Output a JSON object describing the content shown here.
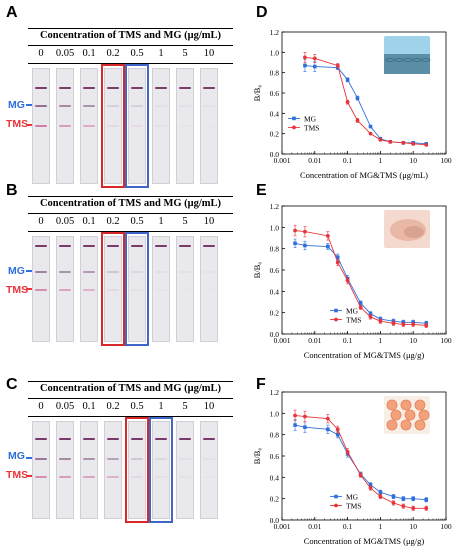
{
  "panel_labels": [
    "A",
    "B",
    "C",
    "D",
    "E",
    "F"
  ],
  "strip_panels": [
    {
      "label": "A",
      "title": "Concentration of TMS and MG (μg/mL)",
      "concentrations": [
        "0",
        "0.05",
        "0.1",
        "0.2",
        "0.5",
        "1",
        "5",
        "10"
      ],
      "line_labels": {
        "mg": "MG",
        "tms": "TMS"
      },
      "red_box_index": 3,
      "blue_box_index": 4
    },
    {
      "label": "B",
      "title": "Concentration of TMS and MG (μg/mL)",
      "concentrations": [
        "0",
        "0.05",
        "0.1",
        "0.2",
        "0.5",
        "1",
        "5",
        "10"
      ],
      "line_labels": {
        "mg": "MG",
        "tms": "TMS"
      },
      "red_box_index": 3,
      "blue_box_index": 4
    },
    {
      "label": "C",
      "title": "Concentration of TMS and MG (μg/mL)",
      "concentrations": [
        "0",
        "0.05",
        "0.1",
        "0.2",
        "0.5",
        "1",
        "5",
        "10"
      ],
      "line_labels": {
        "mg": "MG",
        "tms": "TMS"
      },
      "red_box_index": 4,
      "blue_box_index": 5
    }
  ],
  "colors": {
    "mg": "#2f6fdc",
    "tms": "#e8353a",
    "red_box": "#d62a2a",
    "blue_box": "#3f66c8"
  },
  "chart_data": [
    {
      "type": "line",
      "label": "D",
      "xlabel": "Concentration of MG&TMS (μg/mL)",
      "ylabel": "B/B₀",
      "xscale": "log",
      "xlim": [
        0.001,
        100
      ],
      "ylim": [
        0.0,
        1.2
      ],
      "xticks": [
        "0.001",
        "0.01",
        "0.1",
        "1",
        "10",
        "100"
      ],
      "yticks": [
        "0.0",
        "0.2",
        "0.4",
        "0.6",
        "0.8",
        "1.0",
        "1.2"
      ],
      "legend": "left",
      "photo": "fish farm photo",
      "series": [
        {
          "name": "MG",
          "color": "#2f6fdc",
          "marker": "square",
          "x": [
            0.005,
            0.01,
            0.05,
            0.1,
            0.2,
            0.5,
            1,
            2,
            5,
            10,
            25
          ],
          "y": [
            0.87,
            0.86,
            0.85,
            0.73,
            0.55,
            0.27,
            0.15,
            0.12,
            0.11,
            0.11,
            0.1
          ],
          "err": [
            0.06,
            0.05,
            0.02,
            0.02,
            0.02,
            0.01,
            0.01,
            0.01,
            0.01,
            0.01,
            0.01
          ]
        },
        {
          "name": "TMS",
          "color": "#e8353a",
          "marker": "circle",
          "x": [
            0.005,
            0.01,
            0.05,
            0.1,
            0.2,
            0.5,
            1,
            2,
            5,
            10,
            25
          ],
          "y": [
            0.95,
            0.94,
            0.87,
            0.51,
            0.33,
            0.2,
            0.14,
            0.12,
            0.11,
            0.1,
            0.09
          ],
          "err": [
            0.05,
            0.04,
            0.02,
            0.02,
            0.02,
            0.01,
            0.01,
            0.01,
            0.01,
            0.01,
            0.01
          ]
        }
      ]
    },
    {
      "type": "line",
      "label": "E",
      "xlabel": "Concentration of MG&TMS (μg/g)",
      "ylabel": "B/B₀",
      "xscale": "log",
      "xlim": [
        0.001,
        100
      ],
      "ylim": [
        0.0,
        1.2
      ],
      "xticks": [
        "0.001",
        "0.01",
        "0.1",
        "1",
        "10",
        "100"
      ],
      "yticks": [
        "0.0",
        "0.2",
        "0.4",
        "0.6",
        "0.8",
        "1.0",
        "1.2"
      ],
      "legend": "center",
      "photo": "fish fillet photo",
      "series": [
        {
          "name": "MG",
          "color": "#2f6fdc",
          "marker": "square",
          "x": [
            0.0025,
            0.005,
            0.025,
            0.05,
            0.1,
            0.25,
            0.5,
            1,
            2.5,
            5,
            10,
            25
          ],
          "y": [
            0.85,
            0.83,
            0.82,
            0.72,
            0.52,
            0.29,
            0.19,
            0.14,
            0.12,
            0.11,
            0.11,
            0.1
          ],
          "err": [
            0.04,
            0.04,
            0.03,
            0.03,
            0.03,
            0.02,
            0.02,
            0.02,
            0.02,
            0.02,
            0.02,
            0.02
          ]
        },
        {
          "name": "TMS",
          "color": "#e8353a",
          "marker": "circle",
          "x": [
            0.0025,
            0.005,
            0.025,
            0.05,
            0.1,
            0.25,
            0.5,
            1,
            2.5,
            5,
            10,
            25
          ],
          "y": [
            0.97,
            0.96,
            0.92,
            0.67,
            0.5,
            0.25,
            0.16,
            0.12,
            0.1,
            0.09,
            0.09,
            0.08
          ],
          "err": [
            0.05,
            0.05,
            0.04,
            0.03,
            0.03,
            0.02,
            0.02,
            0.02,
            0.02,
            0.02,
            0.02,
            0.02
          ]
        }
      ]
    },
    {
      "type": "line",
      "label": "F",
      "xlabel": "Concentration of MG&TMS (μg/g)",
      "ylabel": "B/B₀",
      "xscale": "log",
      "xlim": [
        0.001,
        100
      ],
      "ylim": [
        0.0,
        1.2
      ],
      "xticks": [
        "0.001",
        "0.01",
        "0.1",
        "1",
        "10",
        "100"
      ],
      "yticks": [
        "0.0",
        "0.2",
        "0.4",
        "0.6",
        "0.8",
        "1.0",
        "1.2"
      ],
      "legend": "center",
      "photo": "shrimp photo",
      "series": [
        {
          "name": "MG",
          "color": "#2f6fdc",
          "marker": "square",
          "x": [
            0.0025,
            0.005,
            0.025,
            0.05,
            0.1,
            0.25,
            0.5,
            1,
            2.5,
            5,
            10,
            25
          ],
          "y": [
            0.89,
            0.87,
            0.85,
            0.8,
            0.62,
            0.43,
            0.33,
            0.26,
            0.22,
            0.2,
            0.2,
            0.19
          ],
          "err": [
            0.05,
            0.05,
            0.04,
            0.03,
            0.03,
            0.02,
            0.02,
            0.02,
            0.02,
            0.02,
            0.02,
            0.02
          ]
        },
        {
          "name": "TMS",
          "color": "#e8353a",
          "marker": "circle",
          "x": [
            0.0025,
            0.005,
            0.025,
            0.05,
            0.1,
            0.25,
            0.5,
            1,
            2.5,
            5,
            10,
            25
          ],
          "y": [
            0.98,
            0.97,
            0.95,
            0.85,
            0.64,
            0.42,
            0.3,
            0.22,
            0.16,
            0.13,
            0.11,
            0.11
          ],
          "err": [
            0.05,
            0.05,
            0.04,
            0.03,
            0.03,
            0.02,
            0.02,
            0.02,
            0.02,
            0.02,
            0.02,
            0.02
          ]
        }
      ]
    }
  ]
}
